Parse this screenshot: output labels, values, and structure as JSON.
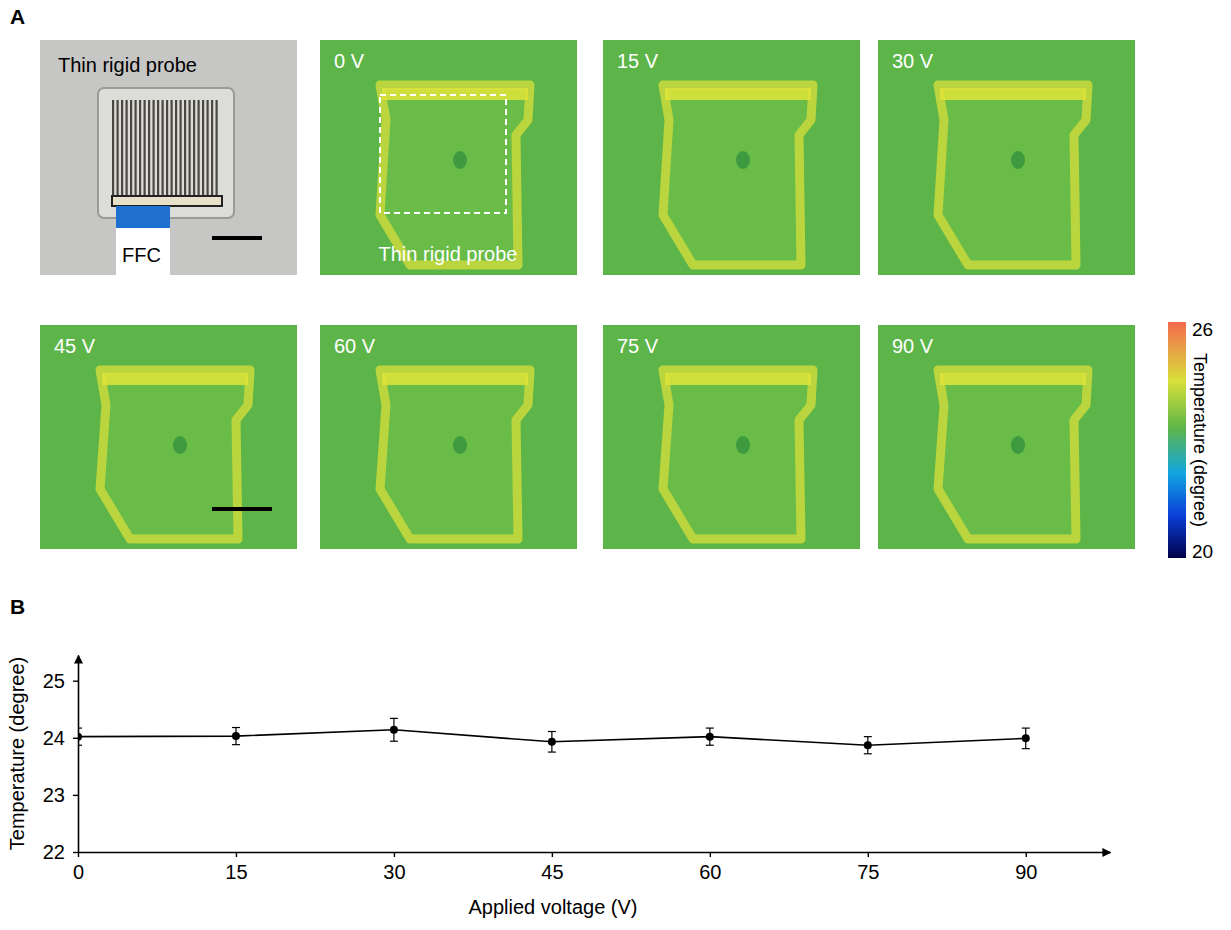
{
  "panel_labels": [
    "A",
    "B"
  ],
  "panel_a": {
    "photo": {
      "labels": [
        "Thin rigid probe",
        "FFC"
      ]
    },
    "thermal_images": [
      {
        "voltage_label": "0 V",
        "annotation": "Thin rigid probe"
      },
      {
        "voltage_label": "15 V"
      },
      {
        "voltage_label": "30 V"
      },
      {
        "voltage_label": "45 V"
      },
      {
        "voltage_label": "60 V"
      },
      {
        "voltage_label": "75 V"
      },
      {
        "voltage_label": "90 V"
      }
    ],
    "colorbar": {
      "range": [
        20,
        26
      ],
      "ticks": [
        20,
        26
      ],
      "title": "Temperature (degree)"
    }
  },
  "chart_data": {
    "type": "line",
    "x": [
      0,
      15,
      30,
      45,
      60,
      75,
      90
    ],
    "values": [
      24.02,
      24.03,
      24.14,
      23.93,
      24.02,
      23.87,
      23.99
    ],
    "errors": [
      0.15,
      0.15,
      0.2,
      0.18,
      0.15,
      0.15,
      0.18
    ],
    "xlim": [
      0,
      98
    ],
    "ylim": [
      22,
      25.45
    ],
    "xticks": [
      0,
      15,
      30,
      45,
      60,
      75,
      90
    ],
    "yticks": [
      22,
      23,
      24,
      25
    ],
    "x_label": "Applied voltage (V)",
    "y_label": "Temperature (degree)",
    "color": "#000000",
    "marker": "circle"
  }
}
